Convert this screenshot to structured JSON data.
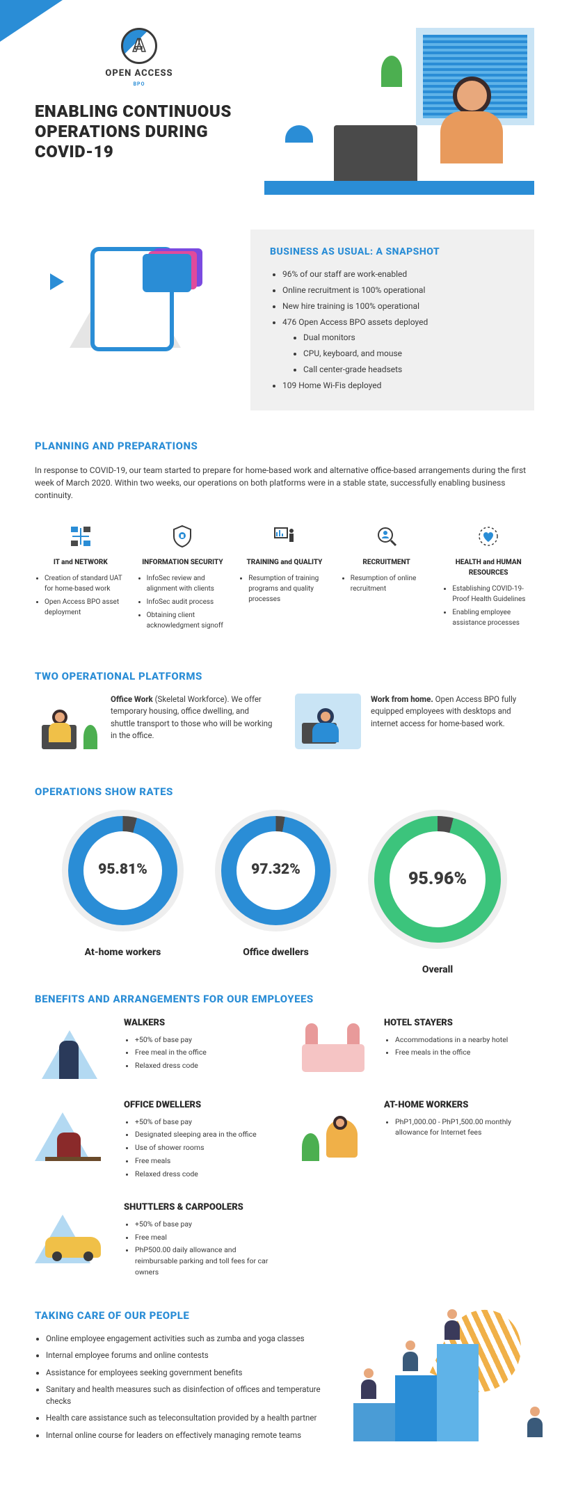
{
  "brand": {
    "name": "OPEN ACCESS",
    "sub": "BPO"
  },
  "title": "ENABLING CONTINUOUS OPERATIONS DURING COVID-19",
  "colors": {
    "primary": "#2a8dd6",
    "accent_green": "#3cc47c",
    "gray_bg": "#f0f0f0",
    "dark_gray": "#4a4a4a",
    "text": "#3a3a3a",
    "light_tri": "#e5e5e5",
    "light_blue_tri": "#b3d9f2"
  },
  "snapshot": {
    "heading": "BUSINESS AS USUAL: A SNAPSHOT",
    "items": [
      "96% of our staff are work-enabled",
      "Online recruitment is 100% operational",
      "New hire training is 100% operational",
      "476 Open Access BPO assets deployed"
    ],
    "subitems": [
      "Dual monitors",
      "CPU, keyboard, and mouse",
      "Call center-grade headsets"
    ],
    "items_after": [
      "109 Home Wi-Fis deployed"
    ]
  },
  "planning": {
    "heading": "PLANNING AND PREPARATIONS",
    "intro": "In response to COVID-19, our team started to prepare for home-based work and alternative office-based arrangements during the first week of March 2020. Within two weeks, our operations on both platforms were in a stable state, successfully enabling business continuity.",
    "pillars": [
      {
        "title": "IT and NETWORK",
        "icon": "network-icon",
        "items": [
          "Creation of standard UAT for home-based work",
          "Open Access BPO asset deployment"
        ]
      },
      {
        "title": "INFORMATION SECURITY",
        "icon": "shield-icon",
        "items": [
          "InfoSec review and alignment with clients",
          "InfoSec audit process",
          "Obtaining client acknowledgment signoff"
        ]
      },
      {
        "title": "TRAINING and QUALITY",
        "icon": "training-icon",
        "items": [
          "Resumption of training programs and quality processes"
        ]
      },
      {
        "title": "RECRUITMENT",
        "icon": "recruitment-icon",
        "items": [
          "Resumption of online recruitment"
        ]
      },
      {
        "title": "HEALTH and HUMAN RESOURCES",
        "icon": "health-icon",
        "items": [
          "Establishing COVID-19-Proof Health Guidelines",
          "Enabling employee assistance processes"
        ]
      }
    ]
  },
  "platforms": {
    "heading": "TWO OPERATIONAL PLATFORMS",
    "items": [
      {
        "title": "Office Work",
        "title_suffix": " (Skeletal Workforce).",
        "desc": "We offer temporary housing, office dwelling, and shuttle transport to those who will be working in the office."
      },
      {
        "title": "Work from home.",
        "title_suffix": "",
        "desc": " Open Access BPO fully equipped employees with desktops and internet access for home-based work."
      }
    ]
  },
  "rates": {
    "heading": "OPERATIONS SHOW RATES",
    "donuts": [
      {
        "label": "At-home workers",
        "value": 95.81,
        "display": "95.81%",
        "color": "#2a8dd6",
        "remainder": "#4a4a4a",
        "big": false
      },
      {
        "label": "Office dwellers",
        "value": 97.32,
        "display": "97.32%",
        "color": "#2a8dd6",
        "remainder": "#4a4a4a",
        "big": false
      },
      {
        "label": "Overall",
        "value": 95.96,
        "display": "95.96%",
        "color": "#3cc47c",
        "remainder": "#4a4a4a",
        "big": true
      }
    ]
  },
  "benefits": {
    "heading": "BENEFITS AND ARRANGEMENTS FOR OUR EMPLOYEES",
    "groups": [
      {
        "title": "WALKERS",
        "items": [
          "+50% of base pay",
          "Free meal in the office",
          "Relaxed dress code"
        ]
      },
      {
        "title": "HOTEL STAYERS",
        "items": [
          "Accommodations in a nearby hotel",
          "Free meals in the office"
        ]
      },
      {
        "title": "OFFICE DWELLERS",
        "items": [
          "+50% of base pay",
          "Designated sleeping area in the office",
          "Use of shower rooms",
          "Free meals",
          "Relaxed dress code"
        ]
      },
      {
        "title": "AT-HOME WORKERS",
        "items": [
          "PhP1,000.00 - PhP1,500.00 monthly allowance for Internet fees"
        ]
      },
      {
        "title": "SHUTTLERS & CARPOOLERS",
        "items": [
          "+50% of base pay",
          "Free meal",
          "PhP500.00 daily allowance and reimbursable parking and toll fees for car owners"
        ]
      }
    ]
  },
  "care": {
    "heading": "TAKING CARE OF OUR PEOPLE",
    "items": [
      "Online employee engagement activities such as zumba and yoga classes",
      "Internal employee forums and online contests",
      "Assistance for employees seeking government benefits",
      "Sanitary and health measures such as disinfection of offices and temperature checks",
      "Health care assistance such as teleconsultation provided by a health partner",
      "Internal online course for leaders on effectively managing remote teams"
    ]
  }
}
